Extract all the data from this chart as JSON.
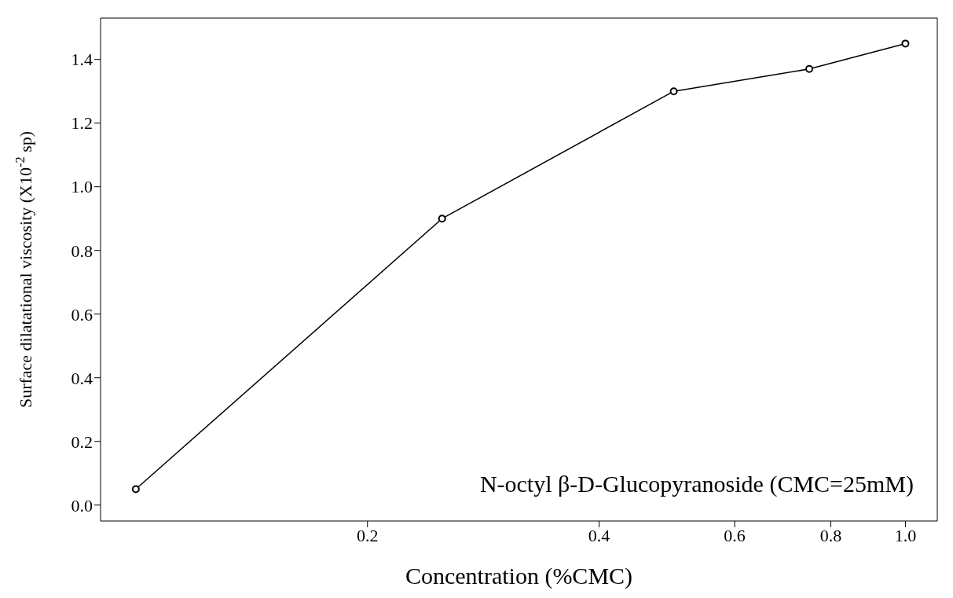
{
  "chart_data": {
    "type": "line",
    "xlabel": "Concentration (%CMC)",
    "ylabel": "Surface dilatational viscosity (X10$^{-2}$ sp)",
    "annotations": [
      "N-octyl β-D-Glucopyranoside (CMC=25mM)"
    ],
    "x": [
      0.1,
      0.25,
      0.5,
      0.75,
      1.0
    ],
    "series": [
      {
        "color": "#000000",
        "values": [
          0.05,
          0.9,
          1.3,
          1.37,
          1.45
        ]
      }
    ],
    "log": "x",
    "xlim": [
      0.09,
      1.1
    ],
    "xticks": [
      0.2,
      0.4,
      0.6,
      0.8,
      {
        "value": 1.0,
        "label": "1.0"
      }
    ],
    "ylim": [
      -0.05,
      1.53
    ],
    "yticks": [
      {
        "value": 0,
        "label": "0.0"
      },
      0.2,
      0.4,
      0.6,
      0.8,
      {
        "value": 1.0,
        "label": "1.0"
      },
      1.2,
      1.4
    ],
    "grid": false,
    "legend": false,
    "marker": "circle",
    "line_style": "solid"
  }
}
